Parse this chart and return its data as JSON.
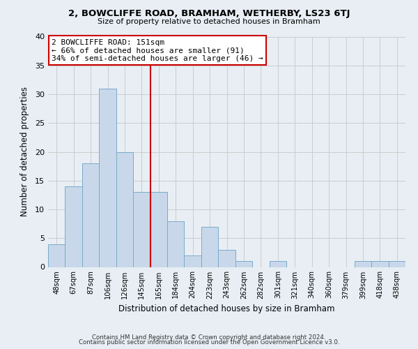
{
  "title": "2, BOWCLIFFE ROAD, BRAMHAM, WETHERBY, LS23 6TJ",
  "subtitle": "Size of property relative to detached houses in Bramham",
  "xlabel": "Distribution of detached houses by size in Bramham",
  "ylabel": "Number of detached properties",
  "bar_labels": [
    "48sqm",
    "67sqm",
    "87sqm",
    "106sqm",
    "126sqm",
    "145sqm",
    "165sqm",
    "184sqm",
    "204sqm",
    "223sqm",
    "243sqm",
    "262sqm",
    "282sqm",
    "301sqm",
    "321sqm",
    "340sqm",
    "360sqm",
    "379sqm",
    "399sqm",
    "418sqm",
    "438sqm"
  ],
  "bar_values": [
    4,
    14,
    18,
    31,
    20,
    13,
    13,
    8,
    2,
    7,
    3,
    1,
    0,
    1,
    0,
    0,
    0,
    0,
    1,
    1,
    1
  ],
  "bar_color": "#c8d8ea",
  "bar_edge_color": "#7aaaca",
  "vline_x": 5.5,
  "vline_color": "#cc0000",
  "ylim": [
    0,
    40
  ],
  "yticks": [
    0,
    5,
    10,
    15,
    20,
    25,
    30,
    35,
    40
  ],
  "annotation_title": "2 BOWCLIFFE ROAD: 151sqm",
  "annotation_line1": "← 66% of detached houses are smaller (91)",
  "annotation_line2": "34% of semi-detached houses are larger (46) →",
  "annotation_box_color": "#ffffff",
  "annotation_box_edge": "#cc0000",
  "footer_line1": "Contains HM Land Registry data © Crown copyright and database right 2024.",
  "footer_line2": "Contains public sector information licensed under the Open Government Licence v3.0.",
  "grid_color": "#cccccc",
  "background_color": "#e8eef4"
}
